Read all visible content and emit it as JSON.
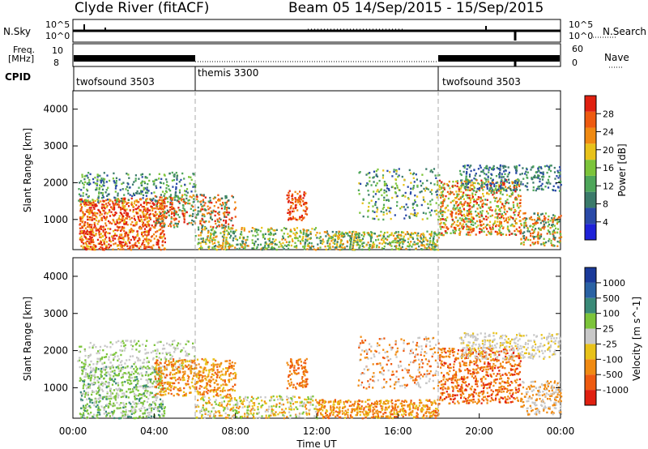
{
  "header": {
    "station": "Clyde River (fitACF)",
    "beam_and_dates": "Beam 05  14/Sep/2015 - 15/Sep/2015"
  },
  "top_panels": {
    "nsky_label": "N.Sky",
    "nsky_ticks": [
      "10^5",
      "10^0"
    ],
    "nsearch_label": "N.Search",
    "nsearch_ticks": [
      "10^5",
      "10^0"
    ],
    "freq_label_line1": "Freq.",
    "freq_label_line2": "[MHz]",
    "freq_ticks": [
      "10",
      "8"
    ],
    "nave_label": "Nave",
    "nave_ticks": [
      "60",
      "0"
    ],
    "cpid_label": "CPID",
    "cpid_segments": [
      {
        "name": "twofsound 3503",
        "start_hour": 0,
        "end_hour": 6
      },
      {
        "name": "themis 3300",
        "start_hour": 6,
        "end_hour": 18
      },
      {
        "name": "twofsound 3503",
        "start_hour": 18,
        "end_hour": 24
      }
    ]
  },
  "chart_data": [
    {
      "type": "heatmap",
      "ylabel": "Slant Range [km]",
      "xlabel": "",
      "ylim": [
        180,
        4500
      ],
      "y_ticks": [
        "1000",
        "2000",
        "3000",
        "4000"
      ],
      "colorbar_label": "Power [dB]",
      "colorbar_ticks": [
        "4",
        "8",
        "12",
        "16",
        "20",
        "24",
        "28"
      ],
      "colorbar_colors": [
        "#1f22d8",
        "#2a4aa8",
        "#3a7a6a",
        "#4ea65a",
        "#7cc43a",
        "#e8c21a",
        "#f08a12",
        "#ee5a10",
        "#e02010"
      ]
    },
    {
      "type": "heatmap",
      "ylabel": "Slant Range [km]",
      "xlabel": "Time UT",
      "ylim": [
        180,
        4500
      ],
      "y_ticks": [
        "1000",
        "2000",
        "3000",
        "4000"
      ],
      "x_ticks": [
        "00:00",
        "04:00",
        "08:00",
        "12:00",
        "16:00",
        "20:00",
        "00:00"
      ],
      "colorbar_label": "Velocity [m s^-1]",
      "colorbar_ticks": [
        "1000",
        "500",
        "100",
        "25",
        "-25",
        "-100",
        "-500",
        "-1000"
      ],
      "colorbar_colors": [
        "#1a3a9a",
        "#2a62a4",
        "#3a8a78",
        "#7cc43a",
        "#c8c8c8",
        "#e8c21a",
        "#f08a12",
        "#ee5a10",
        "#e02010"
      ]
    }
  ]
}
